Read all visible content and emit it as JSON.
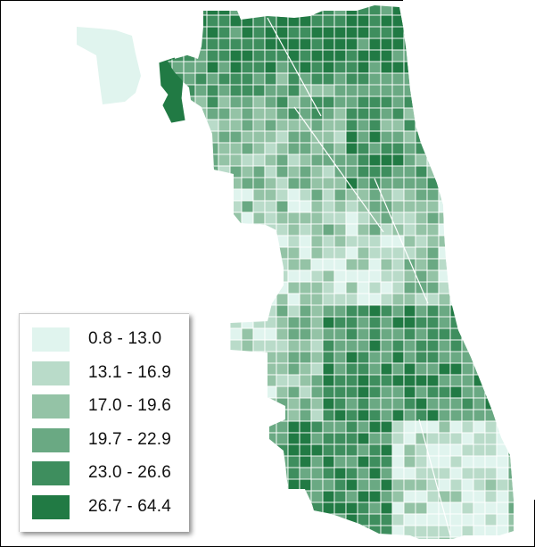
{
  "map": {
    "title": "",
    "region": "Chicago census tracts (choropleth)",
    "stroke_color": "#ffffff",
    "background": "#ffffff"
  },
  "legend": {
    "items": [
      {
        "label": "0.8 - 13.0",
        "color": "#e0f4ee"
      },
      {
        "label": "13.1 - 16.9",
        "color": "#b9dbc9"
      },
      {
        "label": "17.0 - 19.6",
        "color": "#94c3a6"
      },
      {
        "label": "19.7 - 22.9",
        "color": "#6aa983"
      },
      {
        "label": "23.0 - 26.6",
        "color": "#3e8e5e"
      },
      {
        "label": "26.7 - 64.4",
        "color": "#217a44"
      }
    ]
  },
  "chart_data": {
    "type": "heatmap",
    "title": "",
    "subtype": "choropleth map",
    "legend_position": "bottom-left",
    "classes": [
      "0.8 - 13.0",
      "13.1 - 16.9",
      "17.0 - 19.6",
      "19.7 - 22.9",
      "23.0 - 26.6",
      "26.7 - 64.4"
    ],
    "range": [
      0.8,
      64.4
    ],
    "colors": [
      "#e0f4ee",
      "#b9dbc9",
      "#94c3a6",
      "#6aa983",
      "#3e8e5e",
      "#217a44"
    ]
  }
}
